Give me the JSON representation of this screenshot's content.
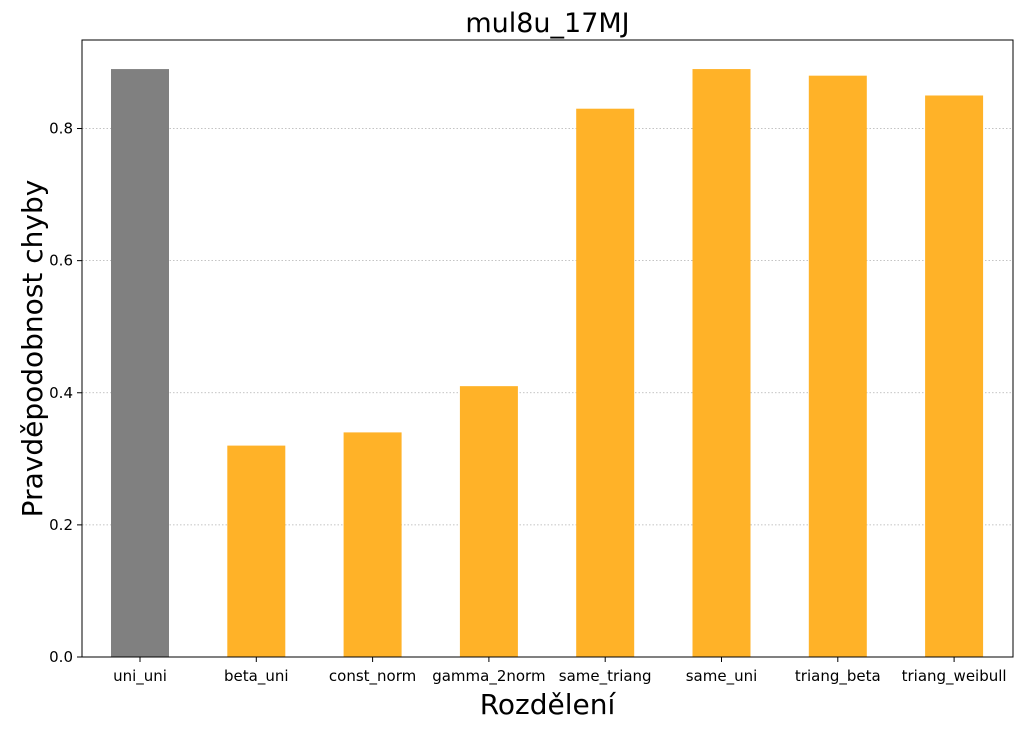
{
  "chart_data": {
    "type": "bar",
    "title": "mul8u_17MJ",
    "xlabel": "Rozdělení",
    "ylabel": "Pravděpodobnost chyby",
    "categories": [
      "uni_uni",
      "beta_uni",
      "const_norm",
      "gamma_2norm",
      "same_triang",
      "same_uni",
      "triang_beta",
      "triang_weibull"
    ],
    "values": [
      0.89,
      0.32,
      0.34,
      0.41,
      0.83,
      0.89,
      0.88,
      0.85
    ],
    "bar_colors": [
      "#808080",
      "#ffb228",
      "#ffb228",
      "#ffb228",
      "#ffb228",
      "#ffb228",
      "#ffb228",
      "#ffb228"
    ],
    "ylim": [
      0,
      0.934
    ],
    "yticks": [
      0.0,
      0.2,
      0.4,
      0.6,
      0.8
    ],
    "ytick_labels": [
      "0.0",
      "0.2",
      "0.4",
      "0.6",
      "0.8"
    ],
    "grid": "y-dotted",
    "legend": "none"
  }
}
